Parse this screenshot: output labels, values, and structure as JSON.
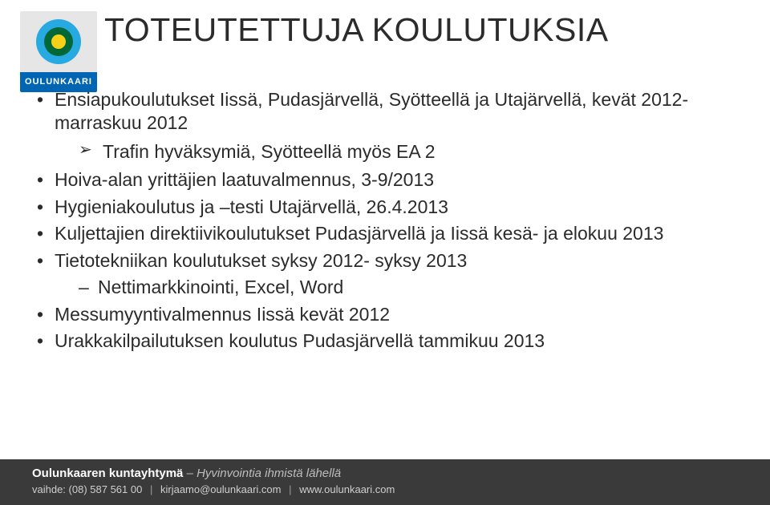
{
  "logo": {
    "label": "OULUNKAARI",
    "bg_top": "#e6e6e6",
    "bg_bottom": "#0066b3",
    "circle_outer": "#27a9e1",
    "circle_mid": "#006837",
    "circle_inner": "#f7d117"
  },
  "title": "TOTEUTETTUJA KOULUTUKSIA",
  "bullets": [
    {
      "text": "Ensiapukoulutukset Iissä, Pudasjärvellä, Syötteellä ja Utajärvellä, kevät 2012- marraskuu 2012",
      "children": [
        {
          "style": "arrow",
          "text": "Trafin hyväksymiä, Syötteellä myös EA 2"
        }
      ]
    },
    {
      "text": "Hoiva-alan yrittäjien laatuvalmennus, 3-9/2013"
    },
    {
      "text": "Hygieniakoulutus ja –testi Utajärvellä, 26.4.2013"
    },
    {
      "text": "Kuljettajien direktiivikoulutukset Pudasjärvellä ja Iissä kesä- ja elokuu 2013"
    },
    {
      "text": "Tietotekniikan koulutukset  syksy 2012- syksy 2013",
      "children": [
        {
          "style": "dash",
          "text": "Nettimarkkinointi, Excel, Word"
        }
      ]
    },
    {
      "text": "Messumyyntivalmennus Iissä kevät 2012"
    },
    {
      "text": "Urakkakilpailutuksen koulutus Pudasjärvellä tammikuu 2013"
    }
  ],
  "footer": {
    "bg": "#3a3a3a",
    "org": "Oulunkaaren kuntayhtymä",
    "tagline": "– Hyvinvointia ihmistä lähellä",
    "contact_prefix": "vaihde:",
    "phone": "(08) 587 561 00",
    "email": "kirjaamo@oulunkaari.com",
    "web": "www.oulunkaari.com"
  }
}
